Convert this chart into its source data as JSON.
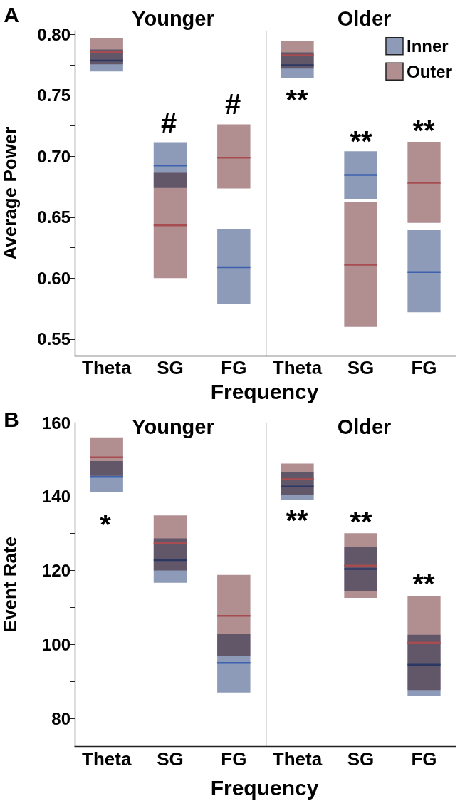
{
  "chart_data": [
    {
      "type": "box",
      "title": "Younger",
      "xlabel": "Frequency",
      "ylabel": "Average Power",
      "categories": [
        "Theta",
        "SG",
        "FG"
      ],
      "annotations": [
        "A",
        "#",
        "#"
      ],
      "series": [
        {
          "color": "#8d9bb9",
          "boxes": [
            {
              "low": 0.7696,
              "q1": 0.7696,
              "median": 0.7785,
              "q3": 0.7875,
              "high": 0.7875
            },
            {
              "low": 0.674,
              "q1": 0.674,
              "median": 0.6924,
              "q3": 0.7115,
              "high": 0.7115
            },
            {
              "low": 0.579,
              "q1": 0.579,
              "median": 0.609,
              "q3": 0.64,
              "high": 0.64
            }
          ]
        },
        {
          "color": "#b18e90",
          "boxes": [
            {
              "low": 0.7754,
              "q1": 0.7754,
              "median": 0.7855,
              "q3": 0.797,
              "high": 0.797
            },
            {
              "low": 0.6,
              "q1": 0.6,
              "median": 0.6433,
              "q3": 0.6864,
              "high": 0.6864
            },
            {
              "low": 0.6735,
              "q1": 0.6735,
              "median": 0.6988,
              "q3": 0.7261,
              "high": 0.7261
            }
          ]
        }
      ],
      "ylim": [
        0.5365,
        0.803
      ],
      "yticks": [
        {
          "value": 0.55,
          "label": "0.55"
        },
        {
          "value": 0.575,
          "label": null
        },
        {
          "value": 0.6,
          "label": "0.60"
        },
        {
          "value": 0.625,
          "label": null
        },
        {
          "value": 0.65,
          "label": "0.65"
        },
        {
          "value": 0.675,
          "label": null
        },
        {
          "value": 0.7,
          "label": "0.70"
        },
        {
          "value": 0.725,
          "label": null
        },
        {
          "value": 0.75,
          "label": "0.75"
        },
        {
          "value": 0.775,
          "label": null
        },
        {
          "value": 0.8,
          "label": "0.80"
        }
      ]
    },
    {
      "type": "box",
      "title": "Older",
      "categories": [
        "Theta",
        "SG",
        "FG"
      ],
      "legend": "top right",
      "tick_labels": "x",
      "annotations": [
        "**",
        "**",
        "**"
      ],
      "series": [
        {
          "name": "Inner",
          "color": "#8d9bb9",
          "boxes": [
            {
              "low": 0.7643,
              "q1": 0.7643,
              "median": 0.7747,
              "q3": 0.7852,
              "high": 0.7852
            },
            {
              "low": 0.6651,
              "q1": 0.6651,
              "median": 0.6846,
              "q3": 0.7041,
              "high": 0.7041
            },
            {
              "low": 0.572,
              "q1": 0.572,
              "median": 0.605,
              "q3": 0.6394,
              "high": 0.6394
            }
          ]
        },
        {
          "name": "Outer",
          "color": "#b18e90",
          "boxes": [
            {
              "low": 0.7719,
              "q1": 0.7719,
              "median": 0.7829,
              "q3": 0.7948,
              "high": 0.7948
            },
            {
              "low": 0.56,
              "q1": 0.56,
              "median": 0.611,
              "q3": 0.6624,
              "high": 0.6624
            },
            {
              "low": 0.6454,
              "q1": 0.6454,
              "median": 0.6782,
              "q3": 0.7119,
              "high": 0.7119
            }
          ]
        }
      ],
      "ylim": [
        0.5365,
        0.803
      ]
    },
    {
      "type": "box",
      "title": "Younger",
      "xlabel": "Frequency",
      "ylabel": "Event Rate",
      "categories": [
        "Theta",
        "SG",
        "FG"
      ],
      "annotations": [
        "B",
        "*"
      ],
      "series": [
        {
          "color": "#8d9bb9",
          "boxes": [
            {
              "low": 141.3,
              "q1": 141.3,
              "median": 145.3,
              "q3": 149.6,
              "high": 149.6
            },
            {
              "low": 116.7,
              "q1": 116.7,
              "median": 122.8,
              "q3": 128.7,
              "high": 128.7
            },
            {
              "low": 87,
              "q1": 87,
              "median": 95,
              "q3": 102.9,
              "high": 102.9
            }
          ]
        },
        {
          "color": "#b18e90",
          "boxes": [
            {
              "low": 145.6,
              "q1": 145.6,
              "median": 150.6,
              "q3": 156,
              "high": 156
            },
            {
              "low": 120,
              "q1": 120,
              "median": 127.5,
              "q3": 134.9,
              "high": 134.9
            },
            {
              "low": 97,
              "q1": 97,
              "median": 107.7,
              "q3": 118.8,
              "high": 118.8
            }
          ]
        }
      ],
      "ylim": [
        72.5,
        160
      ],
      "yticks": [
        80,
        {
          "value": 90,
          "label": null
        },
        100,
        {
          "value": 110,
          "label": null
        },
        120,
        {
          "value": 130,
          "label": null
        },
        140,
        {
          "value": 150,
          "label": null
        },
        160
      ]
    },
    {
      "type": "box",
      "title": "Older",
      "categories": [
        "Theta",
        "SG",
        "FG"
      ],
      "tick_labels": "x",
      "annotations": [
        "**",
        "**",
        "**"
      ],
      "series": [
        {
          "color": "#8d9bb9",
          "boxes": [
            {
              "low": 139.2,
              "q1": 139.2,
              "median": 142.7,
              "q3": 146.6,
              "high": 146.6
            },
            {
              "low": 114.5,
              "q1": 114.5,
              "median": 120.4,
              "q3": 126.4,
              "high": 126.4
            },
            {
              "low": 86,
              "q1": 86,
              "median": 94.5,
              "q3": 102.6,
              "high": 102.6
            }
          ]
        },
        {
          "color": "#b18e90",
          "boxes": [
            {
              "low": 140.5,
              "q1": 140.5,
              "median": 144.7,
              "q3": 148.9,
              "high": 148.9
            },
            {
              "low": 112.6,
              "q1": 112.6,
              "median": 121.3,
              "q3": 130.1,
              "high": 130.1
            },
            {
              "low": 87.7,
              "q1": 87.7,
              "median": 100.5,
              "q3": 113.1,
              "high": 113.1
            }
          ]
        }
      ],
      "ylim": [
        72.5,
        160
      ]
    }
  ]
}
